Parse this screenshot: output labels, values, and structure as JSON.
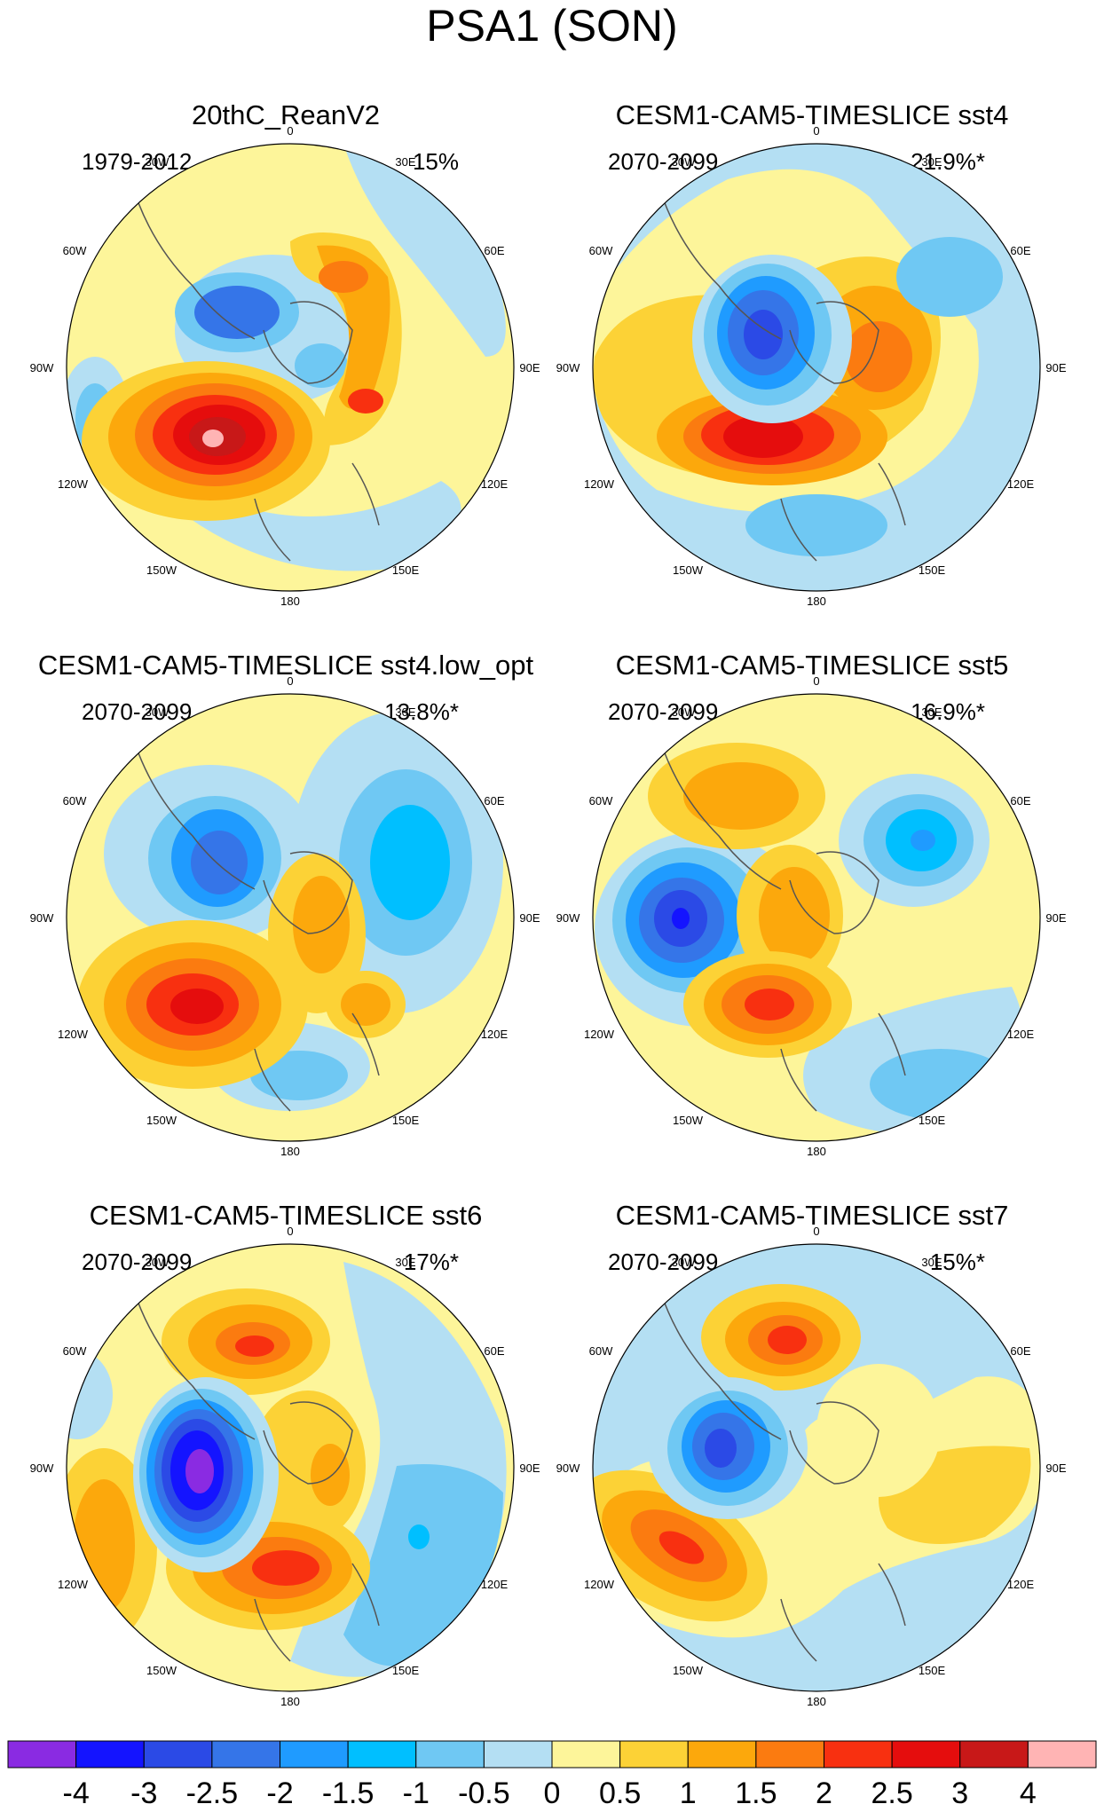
{
  "title": "PSA1 (SON)",
  "longitude_labels": [
    "0",
    "30E",
    "60E",
    "90E",
    "120E",
    "150E",
    "180",
    "150W",
    "120W",
    "90W",
    "60W",
    "30W"
  ],
  "panels": [
    {
      "title": "20thC_ReanV2",
      "period": "1979-2012",
      "variance": "15%"
    },
    {
      "title": "CESM1-CAM5-TIMESLICE sst4",
      "period": "2070-2099",
      "variance": "21.9%*"
    },
    {
      "title": "CESM1-CAM5-TIMESLICE sst4.low_opt",
      "period": "2070-2099",
      "variance": "13.8%*"
    },
    {
      "title": "CESM1-CAM5-TIMESLICE sst5",
      "period": "2070-2099",
      "variance": "16.9%*"
    },
    {
      "title": "CESM1-CAM5-TIMESLICE sst6",
      "period": "2070-2099",
      "variance": "17%*"
    },
    {
      "title": "CESM1-CAM5-TIMESLICE sst7",
      "period": "2070-2099",
      "variance": "15%*"
    }
  ],
  "colorbar": {
    "labels": [
      "-4",
      "-3",
      "-2.5",
      "-2",
      "-1.5",
      "-1",
      "-0.5",
      "0",
      "0.5",
      "1",
      "1.5",
      "2",
      "2.5",
      "3",
      "4"
    ],
    "colors": [
      "#8a2be2",
      "#1414ff",
      "#2b4ae6",
      "#3575e8",
      "#1f9bff",
      "#00bfff",
      "#6fc8f3",
      "#b4dff3",
      "#fdf59a",
      "#fcd236",
      "#fca80c",
      "#fb7b10",
      "#f83010",
      "#e50d0d",
      "#c81818",
      "#ffb4b4"
    ]
  },
  "chart_data": [
    {
      "type": "heatmap",
      "title": "20thC_ReanV2",
      "subtitle": "1979-2012",
      "variance_explained": "15%",
      "projection": "south polar stereographic",
      "anomaly_centers": [
        {
          "lon_label": "120W-150W",
          "value": 4
        },
        {
          "lon_label": "60W-90W",
          "value": -2
        },
        {
          "lon_label": "30W-60E",
          "value": 2
        },
        {
          "lon_label": "90E-120E",
          "value": 2
        }
      ]
    },
    {
      "type": "heatmap",
      "title": "CESM1-CAM5-TIMESLICE sst4",
      "subtitle": "2070-2099",
      "variance_explained": "21.9%*",
      "projection": "south polar stereographic",
      "anomaly_centers": [
        {
          "lon_label": "60W-90W",
          "value": -3
        },
        {
          "lon_label": "150W-180",
          "value": 3
        },
        {
          "lon_label": "60E-120E",
          "value": 2
        }
      ]
    },
    {
      "type": "heatmap",
      "title": "CESM1-CAM5-TIMESLICE sst4.low_opt",
      "subtitle": "2070-2099",
      "variance_explained": "13.8%*",
      "projection": "south polar stereographic",
      "anomaly_centers": [
        {
          "lon_label": "60W-90W",
          "value": -2.5
        },
        {
          "lon_label": "120W",
          "value": 3
        },
        {
          "lon_label": "60E-90E",
          "value": -1.5
        },
        {
          "lon_label": "120E",
          "value": 1.5
        }
      ]
    },
    {
      "type": "heatmap",
      "title": "CESM1-CAM5-TIMESLICE sst5",
      "subtitle": "2070-2099",
      "variance_explained": "16.9%*",
      "projection": "south polar stereographic",
      "anomaly_centers": [
        {
          "lon_label": "90W",
          "value": -3
        },
        {
          "lon_label": "150W-180",
          "value": 2.5
        },
        {
          "lon_label": "30E-60E",
          "value": -2
        },
        {
          "lon_label": "30W-60W",
          "value": 1.5
        }
      ]
    },
    {
      "type": "heatmap",
      "title": "CESM1-CAM5-TIMESLICE sst6",
      "subtitle": "2070-2099",
      "variance_explained": "17%*",
      "projection": "south polar stereographic",
      "anomaly_centers": [
        {
          "lon_label": "90W",
          "value": -4
        },
        {
          "lon_label": "150W-180",
          "value": 2.5
        },
        {
          "lon_label": "30W-60W",
          "value": 2
        },
        {
          "lon_label": "120E",
          "value": -1.5
        }
      ]
    },
    {
      "type": "heatmap",
      "title": "CESM1-CAM5-TIMESLICE sst7",
      "subtitle": "2070-2099",
      "variance_explained": "15%*",
      "projection": "south polar stereographic",
      "anomaly_centers": [
        {
          "lon_label": "60W-90W",
          "value": -2.5
        },
        {
          "lon_label": "120W-150W",
          "value": 2.5
        },
        {
          "lon_label": "30W-60W",
          "value": 2
        },
        {
          "lon_label": "90E-150E",
          "value": 1
        }
      ]
    }
  ]
}
